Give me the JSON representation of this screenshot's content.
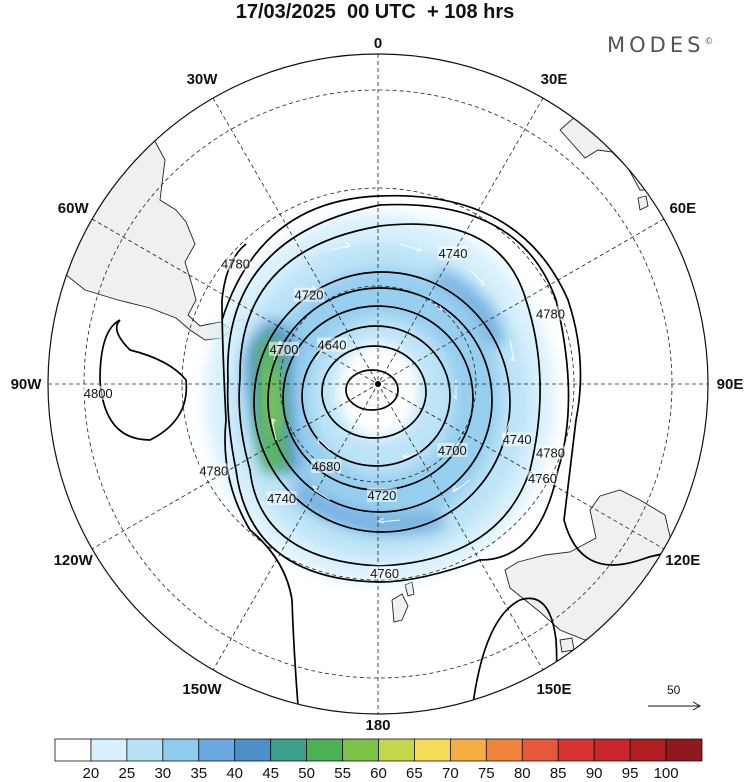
{
  "header": {
    "title": "17/03/2025  00 UTC  + 108 hrs",
    "brand": "MODES",
    "brand_mark": "©"
  },
  "map": {
    "projection": "south-polar-stereographic",
    "longitude_labels": [
      {
        "lon": 0,
        "text": "0"
      },
      {
        "lon": 30,
        "text": "30E"
      },
      {
        "lon": 60,
        "text": "60E"
      },
      {
        "lon": 90,
        "text": "90E"
      },
      {
        "lon": 120,
        "text": "120E"
      },
      {
        "lon": 150,
        "text": "150E"
      },
      {
        "lon": 180,
        "text": "180"
      },
      {
        "lon": -150,
        "text": "150W"
      },
      {
        "lon": -120,
        "text": "120W"
      },
      {
        "lon": -90,
        "text": "90W"
      },
      {
        "lon": -60,
        "text": "60W"
      },
      {
        "lon": -30,
        "text": "30W"
      }
    ],
    "contour_labels": [
      "4640",
      "4680",
      "4700",
      "4720",
      "4740",
      "4760",
      "4780",
      "4800"
    ],
    "contour_label_positions": [
      {
        "text": "4740",
        "lon": 30
      },
      {
        "text": "4720",
        "lon": -38
      },
      {
        "text": "4640",
        "lon": -50
      },
      {
        "text": "4700",
        "lon": -70
      },
      {
        "text": "4780",
        "lon": -50
      },
      {
        "text": "4780",
        "lon": 68
      },
      {
        "text": "4800",
        "lon": -92
      },
      {
        "text": "4700",
        "lon": 132
      },
      {
        "text": "4740",
        "lon": 112
      },
      {
        "text": "4680",
        "lon": -148
      },
      {
        "text": "4720",
        "lon": 178
      },
      {
        "text": "4760",
        "lon": 120
      },
      {
        "text": "4740",
        "lon": -140
      },
      {
        "text": "4780",
        "lon": -118
      },
      {
        "text": "4760",
        "lon": 178
      },
      {
        "text": "4780",
        "lon": 112
      }
    ],
    "colors": {
      "land": "#f0f0f0",
      "coast": "#222222",
      "grid": "#222222",
      "contour": "#000000",
      "vector": "#ffffff"
    }
  },
  "wind_reference": {
    "value": "50"
  },
  "colorbar": {
    "labels": [
      "20",
      "25",
      "30",
      "35",
      "40",
      "45",
      "50",
      "55",
      "60",
      "65",
      "70",
      "75",
      "80",
      "85",
      "90",
      "95",
      "100"
    ],
    "colors": [
      "#ffffff",
      "#d6f0fc",
      "#b8e2f7",
      "#8ecbee",
      "#6aa9dd",
      "#4b90c9",
      "#3c9f8c",
      "#4cb055",
      "#7cc248",
      "#c6d64a",
      "#f6dd58",
      "#f5ae44",
      "#f0843a",
      "#e6583a",
      "#d93434",
      "#c8262c",
      "#b01e24",
      "#8e1a1e"
    ]
  }
}
